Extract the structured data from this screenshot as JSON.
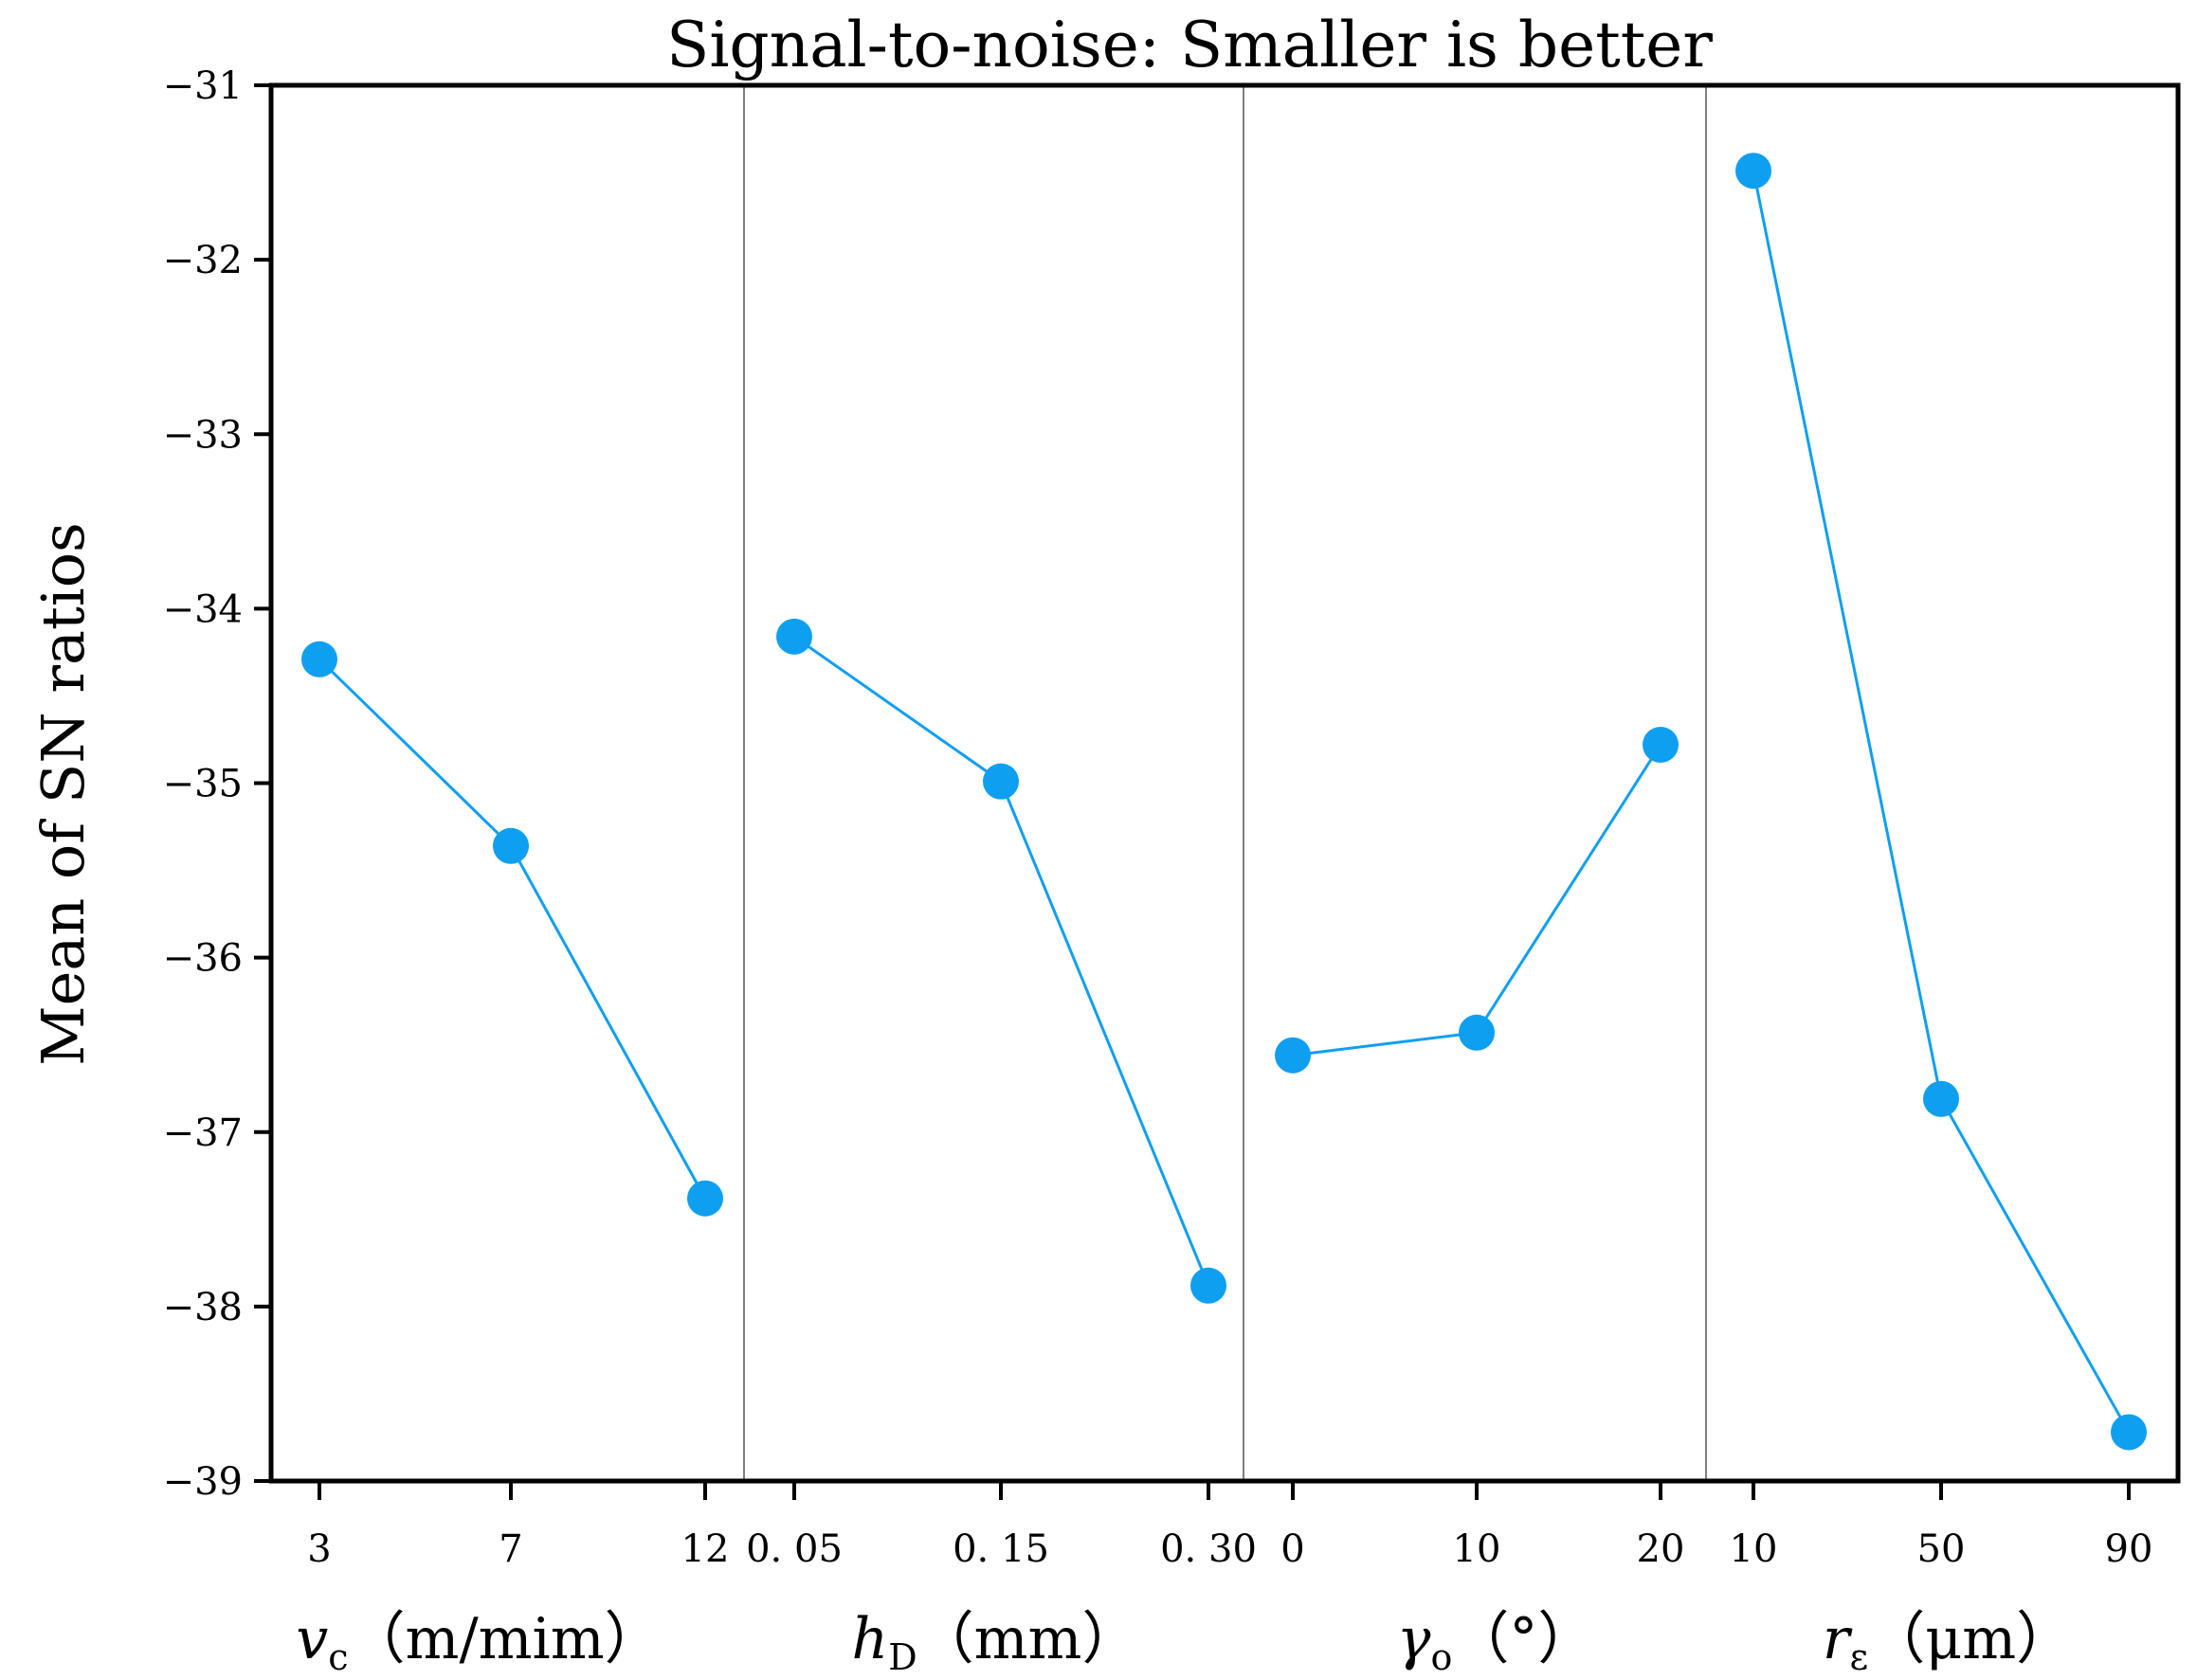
{
  "chart_data": {
    "type": "line",
    "title": "Signal-to-noise: Smaller is better",
    "ylabel": "Mean of SN ratios",
    "ylim": [
      -39,
      -31
    ],
    "yticks": [
      -31,
      -32,
      -33,
      -34,
      -35,
      -36,
      -37,
      -38,
      -39
    ],
    "ytick_labels": [
      "−31",
      "−32",
      "−33",
      "−34",
      "−35",
      "−36",
      "−37",
      "−38",
      "−39"
    ],
    "color": "#0f9ff0",
    "series": [
      {
        "name": "vc",
        "label_main": "v",
        "label_sub": "c",
        "label_unit": "（m/mim）",
        "levels": [
          "3",
          "7",
          "12"
        ],
        "values": [
          -34.29,
          -35.36,
          -37.38
        ]
      },
      {
        "name": "hD",
        "label_main": "h",
        "label_sub": "D",
        "label_unit": "（mm）",
        "levels": [
          "0. 05",
          "0. 15",
          "0. 30"
        ],
        "values": [
          -34.16,
          -34.99,
          -37.88
        ]
      },
      {
        "name": "γo",
        "label_main": "γ",
        "label_sub": "o",
        "label_unit": "（°）",
        "levels": [
          "0",
          "10",
          "20"
        ],
        "values": [
          -36.56,
          -36.43,
          -34.78
        ]
      },
      {
        "name": "rε",
        "label_main": "r",
        "label_sub": "ε",
        "label_unit": "（μm）",
        "levels": [
          "10",
          "50",
          "90"
        ],
        "values": [
          -31.49,
          -36.81,
          -38.72
        ]
      }
    ]
  }
}
